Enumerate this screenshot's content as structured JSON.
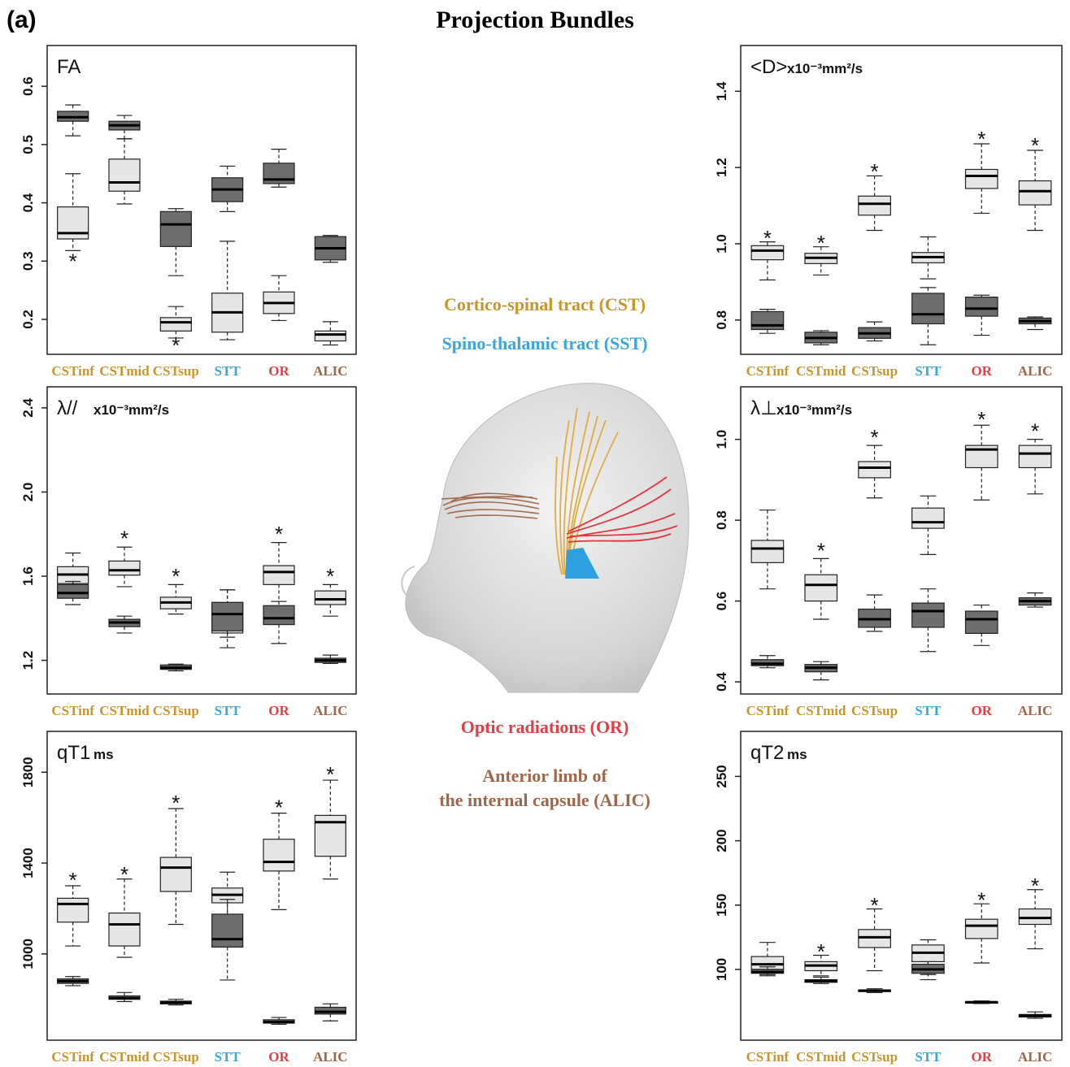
{
  "figure": {
    "label": "(a)",
    "title": "Projection Bundles"
  },
  "legend": {
    "cst": {
      "text": "Cortico-spinal tract (CST)",
      "color": "#C9962B"
    },
    "sst": {
      "text": "Spino-thalamic tract (SST)",
      "color": "#3AA6DD"
    },
    "or": {
      "text": "Optic radiations (OR)",
      "color": "#E63D42"
    },
    "alic_line1": {
      "text": "Anterior limb of",
      "color": "#A0664A"
    },
    "alic_line2": {
      "text": "the internal capsule (ALIC)",
      "color": "#A0664A"
    }
  },
  "colors": {
    "light_box": "#e6e6e6",
    "dark_box": "#6e6e6e",
    "cst": "#C9962B",
    "stt": "#3AA6DD",
    "or": "#E63D42",
    "alic": "#A0664A",
    "head": "#d9d9d9"
  },
  "chart_data": [
    {
      "type": "box",
      "title": "FA",
      "unit": "",
      "categories": [
        "CSTinf",
        "CSTmid",
        "CSTsup",
        "STT",
        "OR",
        "ALIC"
      ],
      "category_colors": [
        "#C9962B",
        "#C9962B",
        "#C9962B",
        "#3AA6DD",
        "#E63D42",
        "#A0664A"
      ],
      "yticks": [
        0.2,
        0.3,
        0.4,
        0.5,
        0.6
      ],
      "ytick_labels": [
        "0.2",
        "0.3",
        "0.4",
        "0.5",
        "0.6"
      ],
      "ylim": [
        0.14,
        0.67
      ],
      "series": [
        {
          "shade": "light",
          "boxes": [
            {
              "min": 0.318,
              "q1": 0.338,
              "median": 0.348,
              "q3": 0.393,
              "max": 0.45
            },
            {
              "min": 0.398,
              "q1": 0.42,
              "median": 0.435,
              "q3": 0.475,
              "max": 0.51
            },
            {
              "min": 0.168,
              "q1": 0.18,
              "median": 0.195,
              "q3": 0.203,
              "max": 0.222
            },
            {
              "min": 0.165,
              "q1": 0.178,
              "median": 0.212,
              "q3": 0.245,
              "max": 0.334
            },
            {
              "min": 0.198,
              "q1": 0.21,
              "median": 0.228,
              "q3": 0.247,
              "max": 0.275
            },
            {
              "min": 0.156,
              "q1": 0.163,
              "median": 0.174,
              "q3": 0.18,
              "max": 0.196
            }
          ]
        },
        {
          "shade": "dark",
          "boxes": [
            {
              "min": 0.515,
              "q1": 0.54,
              "median": 0.547,
              "q3": 0.557,
              "max": 0.568
            },
            {
              "min": 0.51,
              "q1": 0.525,
              "median": 0.533,
              "q3": 0.54,
              "max": 0.55
            },
            {
              "min": 0.275,
              "q1": 0.325,
              "median": 0.363,
              "q3": 0.385,
              "max": 0.39
            },
            {
              "min": 0.385,
              "q1": 0.402,
              "median": 0.423,
              "q3": 0.443,
              "max": 0.463
            },
            {
              "min": 0.427,
              "q1": 0.433,
              "median": 0.44,
              "q3": 0.468,
              "max": 0.492
            },
            {
              "min": 0.298,
              "q1": 0.302,
              "median": 0.322,
              "q3": 0.342,
              "max": 0.344
            }
          ]
        }
      ],
      "stars": [
        {
          "category": 0,
          "value": 0.3
        },
        {
          "category": 2,
          "value": 0.155
        }
      ]
    },
    {
      "type": "box",
      "title": "<D>",
      "unit": "x10⁻³mm²/s",
      "categories": [
        "CSTinf",
        "CSTmid",
        "CSTsup",
        "STT",
        "OR",
        "ALIC"
      ],
      "category_colors": [
        "#C9962B",
        "#C9962B",
        "#C9962B",
        "#3AA6DD",
        "#E63D42",
        "#A0664A"
      ],
      "yticks": [
        0.8,
        1.0,
        1.2,
        1.4
      ],
      "ytick_labels": [
        "0.8",
        "1.0",
        "1.2",
        "1.4"
      ],
      "ylim": [
        0.71,
        1.52
      ],
      "series": [
        {
          "shade": "light",
          "boxes": [
            {
              "min": 0.905,
              "q1": 0.958,
              "median": 0.982,
              "q3": 0.995,
              "max": 1.005
            },
            {
              "min": 0.918,
              "q1": 0.948,
              "median": 0.963,
              "q3": 0.975,
              "max": 0.992
            },
            {
              "min": 1.035,
              "q1": 1.075,
              "median": 1.105,
              "q3": 1.125,
              "max": 1.178
            },
            {
              "min": 0.908,
              "q1": 0.95,
              "median": 0.965,
              "q3": 0.977,
              "max": 1.018
            },
            {
              "min": 1.08,
              "q1": 1.145,
              "median": 1.178,
              "q3": 1.195,
              "max": 1.262
            },
            {
              "min": 1.035,
              "q1": 1.102,
              "median": 1.138,
              "q3": 1.165,
              "max": 1.245
            }
          ]
        },
        {
          "shade": "dark",
          "boxes": [
            {
              "min": 0.765,
              "q1": 0.775,
              "median": 0.786,
              "q3": 0.822,
              "max": 0.828
            },
            {
              "min": 0.735,
              "q1": 0.74,
              "median": 0.753,
              "q3": 0.768,
              "max": 0.772
            },
            {
              "min": 0.745,
              "q1": 0.752,
              "median": 0.765,
              "q3": 0.78,
              "max": 0.795
            },
            {
              "min": 0.735,
              "q1": 0.79,
              "median": 0.815,
              "q3": 0.87,
              "max": 0.885
            },
            {
              "min": 0.76,
              "q1": 0.81,
              "median": 0.83,
              "q3": 0.86,
              "max": 0.865
            },
            {
              "min": 0.775,
              "q1": 0.79,
              "median": 0.797,
              "q3": 0.805,
              "max": 0.808
            }
          ]
        }
      ],
      "stars": [
        {
          "category": 0,
          "value": 1.015
        },
        {
          "category": 1,
          "value": 1.002
        },
        {
          "category": 2,
          "value": 1.19
        },
        {
          "category": 4,
          "value": 1.275
        },
        {
          "category": 5,
          "value": 1.258
        }
      ]
    },
    {
      "type": "box",
      "title": "λ//",
      "unit": "x10⁻³mm²/s",
      "categories": [
        "CSTinf",
        "CSTmid",
        "CSTsup",
        "STT",
        "OR",
        "ALIC"
      ],
      "category_colors": [
        "#C9962B",
        "#C9962B",
        "#C9962B",
        "#3AA6DD",
        "#E63D42",
        "#A0664A"
      ],
      "yticks": [
        1.2,
        1.6,
        2.0,
        2.4
      ],
      "ytick_labels": [
        "1.2",
        "1.6",
        "2.0",
        "2.4"
      ],
      "ylim": [
        1.04,
        2.5
      ],
      "series": [
        {
          "shade": "light",
          "boxes": [
            {
              "min": 1.52,
              "q1": 1.565,
              "median": 1.608,
              "q3": 1.645,
              "max": 1.71
            },
            {
              "min": 1.55,
              "q1": 1.605,
              "median": 1.628,
              "q3": 1.672,
              "max": 1.738
            },
            {
              "min": 1.42,
              "q1": 1.445,
              "median": 1.475,
              "q3": 1.5,
              "max": 1.56
            },
            {
              "min": 1.26,
              "q1": 1.33,
              "median": 1.42,
              "q3": 1.475,
              "max": 1.535
            },
            {
              "min": 1.48,
              "q1": 1.56,
              "median": 1.62,
              "q3": 1.65,
              "max": 1.76
            },
            {
              "min": 1.41,
              "q1": 1.465,
              "median": 1.49,
              "q3": 1.53,
              "max": 1.56
            }
          ]
        },
        {
          "shade": "dark",
          "boxes": [
            {
              "min": 1.465,
              "q1": 1.495,
              "median": 1.52,
              "q3": 1.56,
              "max": 1.575
            },
            {
              "min": 1.33,
              "q1": 1.36,
              "median": 1.38,
              "q3": 1.395,
              "max": 1.41
            },
            {
              "min": 1.15,
              "q1": 1.157,
              "median": 1.165,
              "q3": 1.178,
              "max": 1.182
            },
            {
              "min": 1.31,
              "q1": 1.34,
              "median": 1.42,
              "q3": 1.475,
              "max": 1.535
            },
            {
              "min": 1.28,
              "q1": 1.37,
              "median": 1.4,
              "q3": 1.46,
              "max": 1.48
            },
            {
              "min": 1.185,
              "q1": 1.19,
              "median": 1.2,
              "q3": 1.21,
              "max": 1.225
            }
          ]
        }
      ],
      "stars": [
        {
          "category": 1,
          "value": 1.78
        },
        {
          "category": 2,
          "value": 1.6
        },
        {
          "category": 4,
          "value": 1.8
        },
        {
          "category": 5,
          "value": 1.6
        }
      ]
    },
    {
      "type": "box",
      "title": "λ⊥",
      "unit": "x10⁻³mm²/s",
      "categories": [
        "CSTinf",
        "CSTmid",
        "CSTsup",
        "STT",
        "OR",
        "ALIC"
      ],
      "category_colors": [
        "#C9962B",
        "#C9962B",
        "#C9962B",
        "#3AA6DD",
        "#E63D42",
        "#A0664A"
      ],
      "yticks": [
        0.4,
        0.6,
        0.8,
        1.0
      ],
      "ytick_labels": [
        "0.4",
        "0.6",
        "0.8",
        "1.0"
      ],
      "ylim": [
        0.37,
        1.13
      ],
      "series": [
        {
          "shade": "light",
          "boxes": [
            {
              "min": 0.63,
              "q1": 0.695,
              "median": 0.73,
              "q3": 0.75,
              "max": 0.825
            },
            {
              "min": 0.555,
              "q1": 0.6,
              "median": 0.64,
              "q3": 0.665,
              "max": 0.705
            },
            {
              "min": 0.855,
              "q1": 0.905,
              "median": 0.93,
              "q3": 0.945,
              "max": 0.985
            },
            {
              "min": 0.715,
              "q1": 0.78,
              "median": 0.795,
              "q3": 0.83,
              "max": 0.86
            },
            {
              "min": 0.85,
              "q1": 0.93,
              "median": 0.975,
              "q3": 0.985,
              "max": 1.035
            },
            {
              "min": 0.865,
              "q1": 0.93,
              "median": 0.965,
              "q3": 0.985,
              "max": 1.0
            }
          ]
        },
        {
          "shade": "dark",
          "boxes": [
            {
              "min": 0.435,
              "q1": 0.44,
              "median": 0.445,
              "q3": 0.455,
              "max": 0.465
            },
            {
              "min": 0.405,
              "q1": 0.425,
              "median": 0.435,
              "q3": 0.443,
              "max": 0.45
            },
            {
              "min": 0.525,
              "q1": 0.535,
              "median": 0.555,
              "q3": 0.58,
              "max": 0.615
            },
            {
              "min": 0.475,
              "q1": 0.535,
              "median": 0.575,
              "q3": 0.595,
              "max": 0.63
            },
            {
              "min": 0.49,
              "q1": 0.52,
              "median": 0.555,
              "q3": 0.575,
              "max": 0.59
            },
            {
              "min": 0.585,
              "q1": 0.59,
              "median": 0.6,
              "q3": 0.608,
              "max": 0.62
            }
          ]
        }
      ],
      "stars": [
        {
          "category": 1,
          "value": 0.725
        },
        {
          "category": 2,
          "value": 1.005
        },
        {
          "category": 4,
          "value": 1.05
        },
        {
          "category": 5,
          "value": 1.02
        }
      ]
    },
    {
      "type": "box",
      "title": "qT1",
      "unit": "ms",
      "categories": [
        "CSTinf",
        "CSTmid",
        "CSTsup",
        "STT",
        "OR",
        "ALIC"
      ],
      "category_colors": [
        "#C9962B",
        "#C9962B",
        "#C9962B",
        "#3AA6DD",
        "#E63D42",
        "#A0664A"
      ],
      "yticks": [
        1000,
        1400,
        1800
      ],
      "ytick_labels": [
        "1000",
        "1400",
        "1800"
      ],
      "ylim": [
        620,
        1980
      ],
      "series": [
        {
          "shade": "light",
          "boxes": [
            {
              "min": 1035,
              "q1": 1140,
              "median": 1220,
              "q3": 1245,
              "max": 1300
            },
            {
              "min": 985,
              "q1": 1035,
              "median": 1130,
              "q3": 1180,
              "max": 1330
            },
            {
              "min": 1130,
              "q1": 1275,
              "median": 1380,
              "q3": 1425,
              "max": 1640
            },
            {
              "min": 1160,
              "q1": 1225,
              "median": 1260,
              "q3": 1290,
              "max": 1360
            },
            {
              "min": 1195,
              "q1": 1365,
              "median": 1405,
              "q3": 1505,
              "max": 1620
            },
            {
              "min": 1330,
              "q1": 1430,
              "median": 1580,
              "q3": 1610,
              "max": 1765
            }
          ]
        },
        {
          "shade": "dark",
          "boxes": [
            {
              "min": 860,
              "q1": 870,
              "median": 880,
              "q3": 890,
              "max": 900
            },
            {
              "min": 790,
              "q1": 800,
              "median": 805,
              "q3": 815,
              "max": 830
            },
            {
              "min": 775,
              "q1": 780,
              "median": 785,
              "q3": 792,
              "max": 800
            },
            {
              "min": 885,
              "q1": 1030,
              "median": 1065,
              "q3": 1175,
              "max": 1240
            },
            {
              "min": 690,
              "q1": 695,
              "median": 700,
              "q3": 710,
              "max": 720
            },
            {
              "min": 705,
              "q1": 735,
              "median": 745,
              "q3": 765,
              "max": 780
            }
          ]
        }
      ],
      "stars": [
        {
          "category": 0,
          "value": 1325
        },
        {
          "category": 1,
          "value": 1350
        },
        {
          "category": 2,
          "value": 1665
        },
        {
          "category": 4,
          "value": 1645
        },
        {
          "category": 5,
          "value": 1790
        }
      ]
    },
    {
      "type": "box",
      "title": "qT2",
      "unit": "ms",
      "categories": [
        "CSTinf",
        "CSTmid",
        "CSTsup",
        "STT",
        "OR",
        "ALIC"
      ],
      "category_colors": [
        "#C9962B",
        "#C9962B",
        "#C9962B",
        "#3AA6DD",
        "#E63D42",
        "#A0664A"
      ],
      "yticks": [
        100,
        150,
        200,
        250
      ],
      "ytick_labels": [
        "100",
        "150",
        "200",
        "250"
      ],
      "ylim": [
        45,
        285
      ],
      "series": [
        {
          "shade": "light",
          "boxes": [
            {
              "min": 96,
              "q1": 100,
              "median": 104,
              "q3": 110,
              "max": 121
            },
            {
              "min": 95,
              "q1": 99,
              "median": 103,
              "q3": 106,
              "max": 111
            },
            {
              "min": 99,
              "q1": 117,
              "median": 125,
              "q3": 131,
              "max": 147
            },
            {
              "min": 96,
              "q1": 106,
              "median": 113,
              "q3": 119,
              "max": 123
            },
            {
              "min": 105,
              "q1": 124,
              "median": 134,
              "q3": 139,
              "max": 151
            },
            {
              "min": 116,
              "q1": 135,
              "median": 140,
              "q3": 147,
              "max": 162
            }
          ]
        },
        {
          "shade": "dark",
          "boxes": [
            {
              "min": 95,
              "q1": 97,
              "median": 98,
              "q3": 100,
              "max": 102
            },
            {
              "min": 89,
              "q1": 90,
              "median": 91,
              "q3": 92,
              "max": 94
            },
            {
              "min": 82,
              "q1": 83,
              "median": 83.5,
              "q3": 84,
              "max": 85
            },
            {
              "min": 92,
              "q1": 97,
              "median": 100,
              "q3": 104,
              "max": 106
            },
            {
              "min": 73.5,
              "q1": 74,
              "median": 74.5,
              "q3": 75,
              "max": 75.5
            },
            {
              "min": 62,
              "q1": 63,
              "median": 64,
              "q3": 65,
              "max": 67
            }
          ]
        }
      ],
      "stars": [
        {
          "category": 1,
          "value": 114
        },
        {
          "category": 2,
          "value": 150
        },
        {
          "category": 4,
          "value": 154
        },
        {
          "category": 5,
          "value": 165
        }
      ]
    }
  ]
}
